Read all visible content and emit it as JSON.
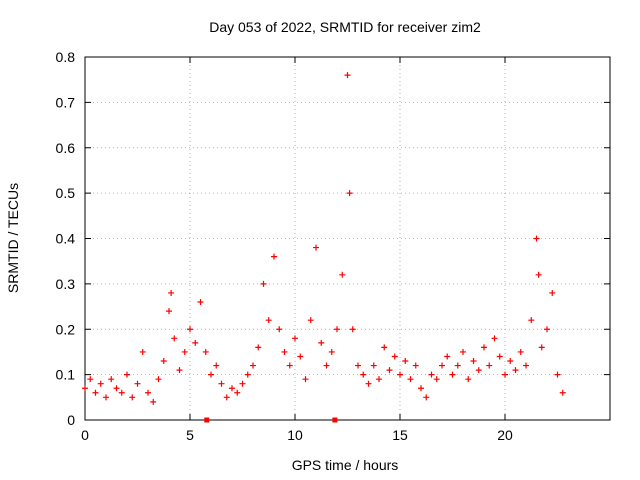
{
  "chart_data": {
    "type": "scatter",
    "title": "Day 053 of 2022, SRMTID for receiver zim2",
    "xlabel": "GPS time / hours",
    "ylabel": "SRMTID / TECUs",
    "xlim": [
      0,
      25
    ],
    "ylim": [
      0,
      0.8
    ],
    "x_ticks": [
      0,
      5,
      10,
      15,
      20
    ],
    "x_tick_labels": [
      "0",
      "5",
      "10",
      "15",
      "20"
    ],
    "y_ticks": [
      0,
      0.1,
      0.2,
      0.3,
      0.4,
      0.5,
      0.6,
      0.7,
      0.8
    ],
    "y_tick_labels": [
      "0",
      "0.1",
      "0.2",
      "0.3",
      "0.4",
      "0.5",
      "0.6",
      "0.7",
      "0.8"
    ],
    "grid": true,
    "marker": "plus",
    "series": [
      {
        "name": "SRMTID",
        "color": "#ff0000",
        "x": [
          0.0,
          0.25,
          0.5,
          0.75,
          1.0,
          1.25,
          1.5,
          1.75,
          2.0,
          2.25,
          2.5,
          2.75,
          3.0,
          3.25,
          3.5,
          3.75,
          4.0,
          4.1,
          4.25,
          4.5,
          4.75,
          5.0,
          5.25,
          5.5,
          5.75,
          6.0,
          6.25,
          6.5,
          6.75,
          7.0,
          7.25,
          7.5,
          7.75,
          8.0,
          8.25,
          8.5,
          8.75,
          9.0,
          9.25,
          9.5,
          9.75,
          10.0,
          10.25,
          10.5,
          10.75,
          11.0,
          11.25,
          11.5,
          11.75,
          12.0,
          12.25,
          12.5,
          12.6,
          12.75,
          13.0,
          13.25,
          13.5,
          13.75,
          14.0,
          14.25,
          14.5,
          14.75,
          15.0,
          15.25,
          15.5,
          15.75,
          16.0,
          16.25,
          16.5,
          16.75,
          17.0,
          17.25,
          17.5,
          17.75,
          18.0,
          18.25,
          18.5,
          18.75,
          19.0,
          19.25,
          19.5,
          19.75,
          20.0,
          20.25,
          20.5,
          20.75,
          21.0,
          21.25,
          21.5,
          21.6,
          21.75,
          22.0,
          22.25,
          22.5,
          22.75
        ],
        "y": [
          0.07,
          0.09,
          0.06,
          0.08,
          0.05,
          0.09,
          0.07,
          0.06,
          0.1,
          0.05,
          0.08,
          0.15,
          0.06,
          0.04,
          0.09,
          0.13,
          0.24,
          0.28,
          0.18,
          0.11,
          0.15,
          0.2,
          0.17,
          0.26,
          0.15,
          0.1,
          0.12,
          0.08,
          0.05,
          0.07,
          0.06,
          0.08,
          0.1,
          0.12,
          0.16,
          0.3,
          0.22,
          0.36,
          0.2,
          0.15,
          0.12,
          0.18,
          0.14,
          0.09,
          0.22,
          0.38,
          0.17,
          0.12,
          0.15,
          0.2,
          0.32,
          0.76,
          0.5,
          0.2,
          0.12,
          0.1,
          0.08,
          0.12,
          0.09,
          0.16,
          0.11,
          0.14,
          0.1,
          0.13,
          0.09,
          0.12,
          0.07,
          0.05,
          0.1,
          0.09,
          0.12,
          0.14,
          0.1,
          0.12,
          0.15,
          0.09,
          0.13,
          0.11,
          0.16,
          0.12,
          0.18,
          0.14,
          0.1,
          0.13,
          0.11,
          0.15,
          0.12,
          0.22,
          0.4,
          0.32,
          0.16,
          0.2,
          0.28,
          0.1,
          0.06
        ]
      }
    ],
    "markers": [
      {
        "name": "data gap marker",
        "x": 5.8,
        "y": 0
      },
      {
        "name": "data gap marker",
        "x": 11.9,
        "y": 0
      }
    ]
  }
}
